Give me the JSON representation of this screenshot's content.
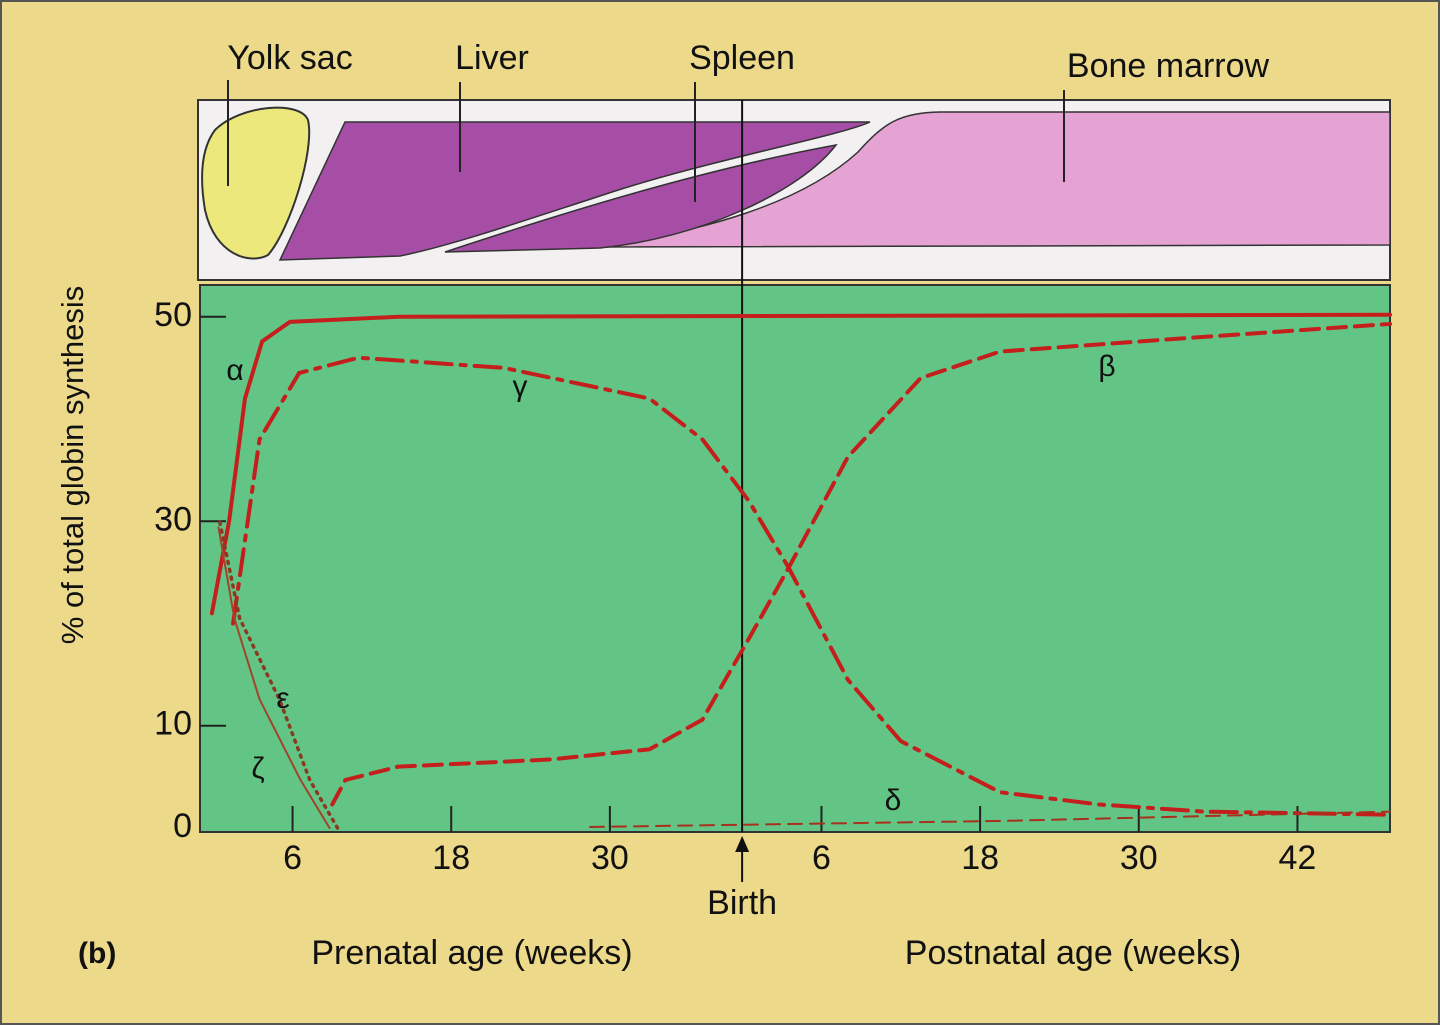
{
  "chart_data": {
    "type": "line",
    "panel_label": "(b)",
    "ylabel": "% of total globin synthesis",
    "xlabels": [
      "Prenatal age (weeks)",
      "Postnatal age (weeks)"
    ],
    "birth_label": "Birth",
    "birth": 40,
    "organs": [
      "Yolk sac",
      "Liver",
      "Spleen",
      "Bone marrow"
    ],
    "xlim": [
      -1,
      89
    ],
    "ylim": [
      0,
      53.5
    ],
    "xticks": [
      6,
      18,
      30,
      {
        "value": 46,
        "label": "6"
      },
      {
        "value": 58,
        "label": "18"
      },
      {
        "value": 70,
        "label": "30"
      },
      {
        "value": 82,
        "label": "42"
      }
    ],
    "yticks": [
      0,
      10,
      30,
      50
    ],
    "series": [
      {
        "name": "α",
        "color": "#c41f1c",
        "style": "solid",
        "x": [
          -0.1,
          1.2,
          2.4,
          3.7,
          5.8,
          14,
          89
        ],
        "values": [
          21,
          30,
          42,
          47.6,
          49.5,
          50,
          50.2
        ]
      },
      {
        "name": "γ",
        "color": "#c41f1c",
        "style": "dash-dot",
        "x": [
          1.5,
          3.5,
          6.5,
          11,
          22,
          33,
          37,
          40.5,
          43.5,
          48,
          52,
          59.5,
          67,
          75,
          89
        ],
        "values": [
          20,
          38,
          44.5,
          46,
          45,
          42,
          38,
          32,
          25.5,
          14.5,
          8.5,
          3.5,
          2.3,
          1.6,
          1.3
        ]
      },
      {
        "name": "β",
        "color": "#c41f1c",
        "style": "dashed",
        "x": [
          9,
          10,
          14,
          25.5,
          33,
          37,
          40.5,
          43.5,
          48,
          53.5,
          59.5,
          74.5,
          89
        ],
        "values": [
          2.3,
          4.7,
          6,
          6.7,
          7.7,
          10.6,
          18.5,
          25.4,
          36.3,
          44,
          46.6,
          48,
          49.3
        ]
      },
      {
        "name": "ε",
        "color": "#8a3a20",
        "style": "dotted",
        "x": [
          0.5,
          2,
          5,
          7.3,
          9.4
        ],
        "values": [
          29.9,
          20.5,
          12.6,
          4.7,
          0
        ]
      },
      {
        "name": "ζ",
        "color": "#a0442a",
        "style": "thin-solid",
        "x": [
          0.4,
          1.6,
          3.5,
          6.6,
          8.8
        ],
        "values": [
          29.4,
          20.5,
          12.6,
          4.7,
          0
        ]
      },
      {
        "name": "δ",
        "color": "#a8301e",
        "style": "thin-dashed",
        "x": [
          28.5,
          60,
          89
        ],
        "values": [
          0.1,
          0.7,
          1.6
        ]
      }
    ]
  }
}
